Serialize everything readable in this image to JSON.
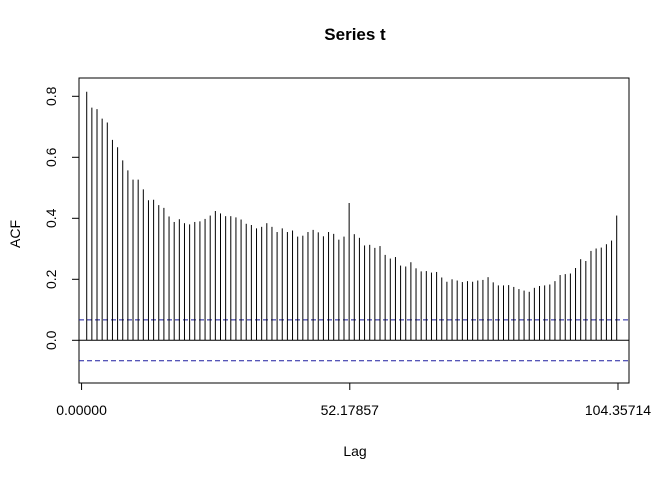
{
  "chart_data": {
    "type": "bar",
    "title": "Series  t",
    "xlabel": "Lag",
    "ylabel": "ACF",
    "xlim": [
      -0.5,
      106.5
    ],
    "ylim": [
      -0.14,
      0.86
    ],
    "x_ticks": [
      0,
      52.17857,
      104.35714
    ],
    "x_tick_labels": [
      "0.00000",
      "52.17857",
      "104.35714"
    ],
    "y_ticks": [
      0.0,
      0.2,
      0.4,
      0.6,
      0.8
    ],
    "y_tick_labels": [
      "0.0",
      "0.2",
      "0.4",
      "0.6",
      "0.8"
    ],
    "confidence_band": 0.067,
    "grid": false,
    "lag_step": 1.0010274,
    "values": [
      0.815,
      0.763,
      0.758,
      0.727,
      0.714,
      0.657,
      0.633,
      0.59,
      0.557,
      0.527,
      0.527,
      0.495,
      0.459,
      0.461,
      0.443,
      0.434,
      0.406,
      0.388,
      0.397,
      0.384,
      0.38,
      0.388,
      0.39,
      0.398,
      0.409,
      0.424,
      0.416,
      0.407,
      0.407,
      0.403,
      0.396,
      0.382,
      0.378,
      0.367,
      0.372,
      0.384,
      0.372,
      0.355,
      0.367,
      0.355,
      0.36,
      0.34,
      0.343,
      0.355,
      0.362,
      0.354,
      0.341,
      0.355,
      0.349,
      0.33,
      0.34,
      0.45,
      0.348,
      0.336,
      0.311,
      0.313,
      0.303,
      0.309,
      0.28,
      0.268,
      0.273,
      0.245,
      0.242,
      0.256,
      0.236,
      0.226,
      0.227,
      0.222,
      0.224,
      0.206,
      0.192,
      0.2,
      0.196,
      0.191,
      0.194,
      0.192,
      0.196,
      0.198,
      0.207,
      0.19,
      0.18,
      0.18,
      0.181,
      0.175,
      0.168,
      0.163,
      0.159,
      0.172,
      0.178,
      0.18,
      0.183,
      0.194,
      0.214,
      0.217,
      0.219,
      0.237,
      0.266,
      0.26,
      0.293,
      0.301,
      0.304,
      0.315,
      0.327,
      0.409
    ]
  }
}
